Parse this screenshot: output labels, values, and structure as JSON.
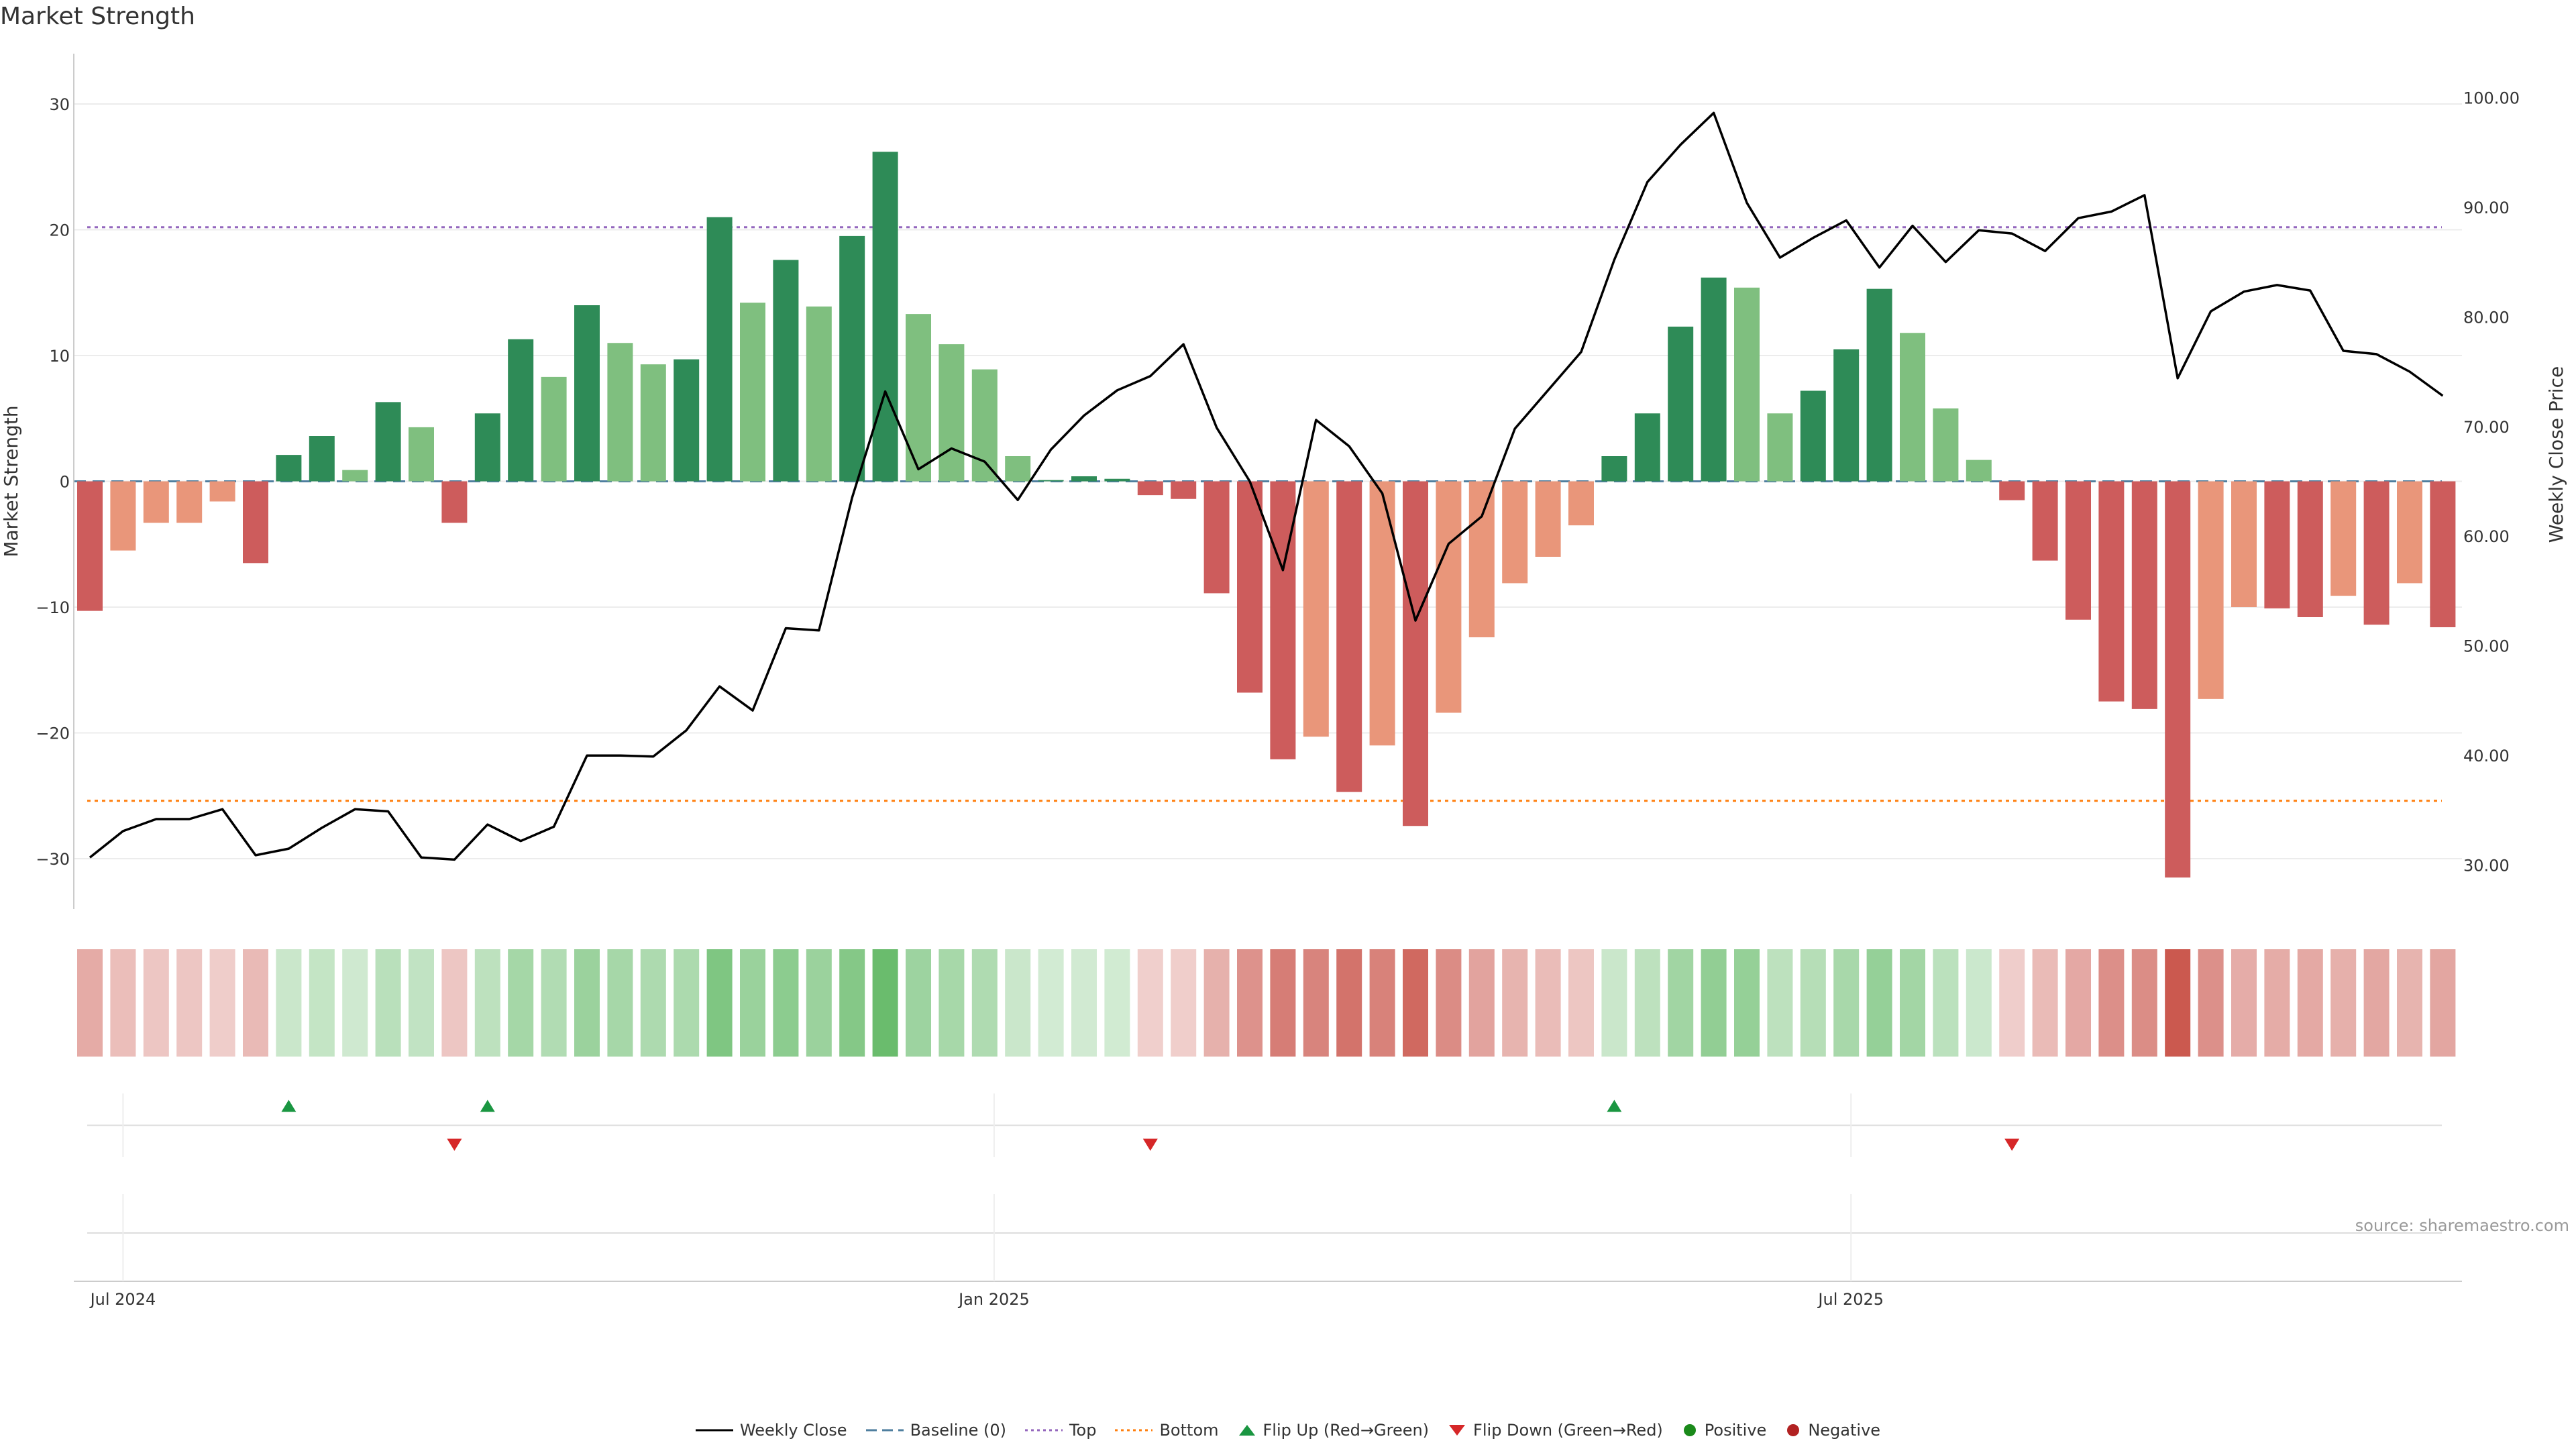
{
  "title": "Market Strength",
  "source_label": "source: sharemaestro.com",
  "colors": {
    "strong_green": "#2e8b57",
    "light_green": "#7fbf7f",
    "strong_red": "#cd5c5c",
    "light_red": "#e9967a",
    "price_line": "#000000",
    "baseline": "#4f7f9f",
    "top_line": "#9467bd",
    "bottom_line": "#ff7f0e",
    "flip_up": "#1a9641",
    "flip_down": "#d62728"
  },
  "chart_data": {
    "type": "bar",
    "x_type": "weekly dates",
    "x_tick_labels": [
      "Jul 2024",
      "Jan 2025",
      "Jul 2025"
    ],
    "x_tick_dates": [
      "2024-07-01",
      "2025-01-01",
      "2025-07-01"
    ],
    "first_week": "2024-06-24",
    "ylabel": "Market Strength",
    "ylim": [
      -34,
      34
    ],
    "y_ticks": [
      -30,
      -20,
      -10,
      0,
      10,
      20,
      30
    ],
    "y_tick_labels": [
      "−30",
      "−20",
      "−10",
      "0",
      "10",
      "20",
      "30"
    ],
    "y2label": "Weekly Close Price",
    "y2lim": [
      26,
      104
    ],
    "y2_ticks": [
      30,
      40,
      50,
      60,
      70,
      80,
      90,
      100
    ],
    "y2_tick_labels": [
      "30.00",
      "40.00",
      "50.00",
      "60.00",
      "70.00",
      "80.00",
      "90.00",
      "100.00"
    ],
    "top_level": 20.2,
    "bottom_level": -25.4,
    "strength": [
      -10.3,
      -5.5,
      -3.3,
      -3.3,
      -1.6,
      -6.5,
      2.1,
      3.6,
      0.9,
      6.3,
      4.3,
      -3.3,
      5.4,
      11.3,
      8.3,
      14.0,
      11.0,
      9.3,
      9.7,
      21.0,
      14.2,
      17.6,
      13.9,
      19.5,
      26.2,
      13.3,
      10.9,
      8.9,
      2.0,
      0.1,
      0.4,
      0.2,
      -1.1,
      -1.4,
      -8.9,
      -16.8,
      -22.1,
      -20.3,
      -24.7,
      -21.0,
      -27.4,
      -18.4,
      -12.4,
      -8.1,
      -6.0,
      -3.5,
      2.0,
      5.4,
      12.3,
      16.2,
      15.4,
      5.4,
      7.2,
      10.5,
      15.3,
      11.8,
      5.8,
      1.7,
      -1.5,
      -6.3,
      -11.0,
      -17.5,
      -18.1,
      -31.5,
      -17.3,
      -10.0,
      -10.1,
      -10.8,
      -9.1,
      -11.4,
      -8.1,
      -11.6
    ],
    "strength_strong": [
      true,
      false,
      false,
      false,
      false,
      true,
      true,
      true,
      false,
      true,
      false,
      true,
      true,
      true,
      false,
      true,
      false,
      false,
      true,
      true,
      false,
      true,
      false,
      true,
      true,
      false,
      false,
      false,
      false,
      true,
      true,
      true,
      true,
      true,
      true,
      true,
      true,
      false,
      true,
      false,
      true,
      false,
      false,
      false,
      false,
      false,
      true,
      true,
      true,
      true,
      false,
      false,
      true,
      true,
      true,
      false,
      false,
      false,
      true,
      true,
      true,
      true,
      true,
      true,
      false,
      false,
      true,
      true,
      false,
      true,
      false,
      true
    ],
    "weekly_close": [
      30.7,
      33.1,
      34.2,
      34.2,
      35.1,
      30.9,
      31.5,
      33.4,
      35.1,
      34.9,
      30.7,
      30.5,
      33.7,
      32.2,
      33.5,
      40.0,
      40.0,
      39.9,
      42.3,
      46.3,
      44.1,
      51.6,
      51.4,
      63.5,
      73.2,
      66.1,
      68.0,
      66.8,
      63.3,
      67.9,
      71.0,
      73.3,
      74.6,
      77.5,
      69.9,
      65.0,
      56.9,
      70.6,
      68.2,
      63.9,
      52.3,
      59.3,
      61.8,
      69.8,
      73.3,
      76.8,
      85.2,
      92.3,
      95.7,
      98.6,
      90.4,
      85.4,
      87.2,
      88.8,
      84.5,
      88.3,
      85.0,
      87.9,
      87.6,
      86.0,
      89.0,
      89.6,
      91.1,
      74.4,
      80.5,
      82.3,
      82.9,
      82.4,
      76.9,
      76.6,
      75.0,
      72.8
    ],
    "flip_up_weeks": [
      6,
      12,
      46
    ],
    "flip_down_weeks": [
      11,
      32,
      58
    ],
    "legend": [
      "Weekly Close",
      "Baseline (0)",
      "Top",
      "Bottom",
      "Flip Up (Red→Green)",
      "Flip Down (Green→Red)",
      "Positive",
      "Negative"
    ],
    "legend_position": "bottom-center",
    "grid": true
  }
}
